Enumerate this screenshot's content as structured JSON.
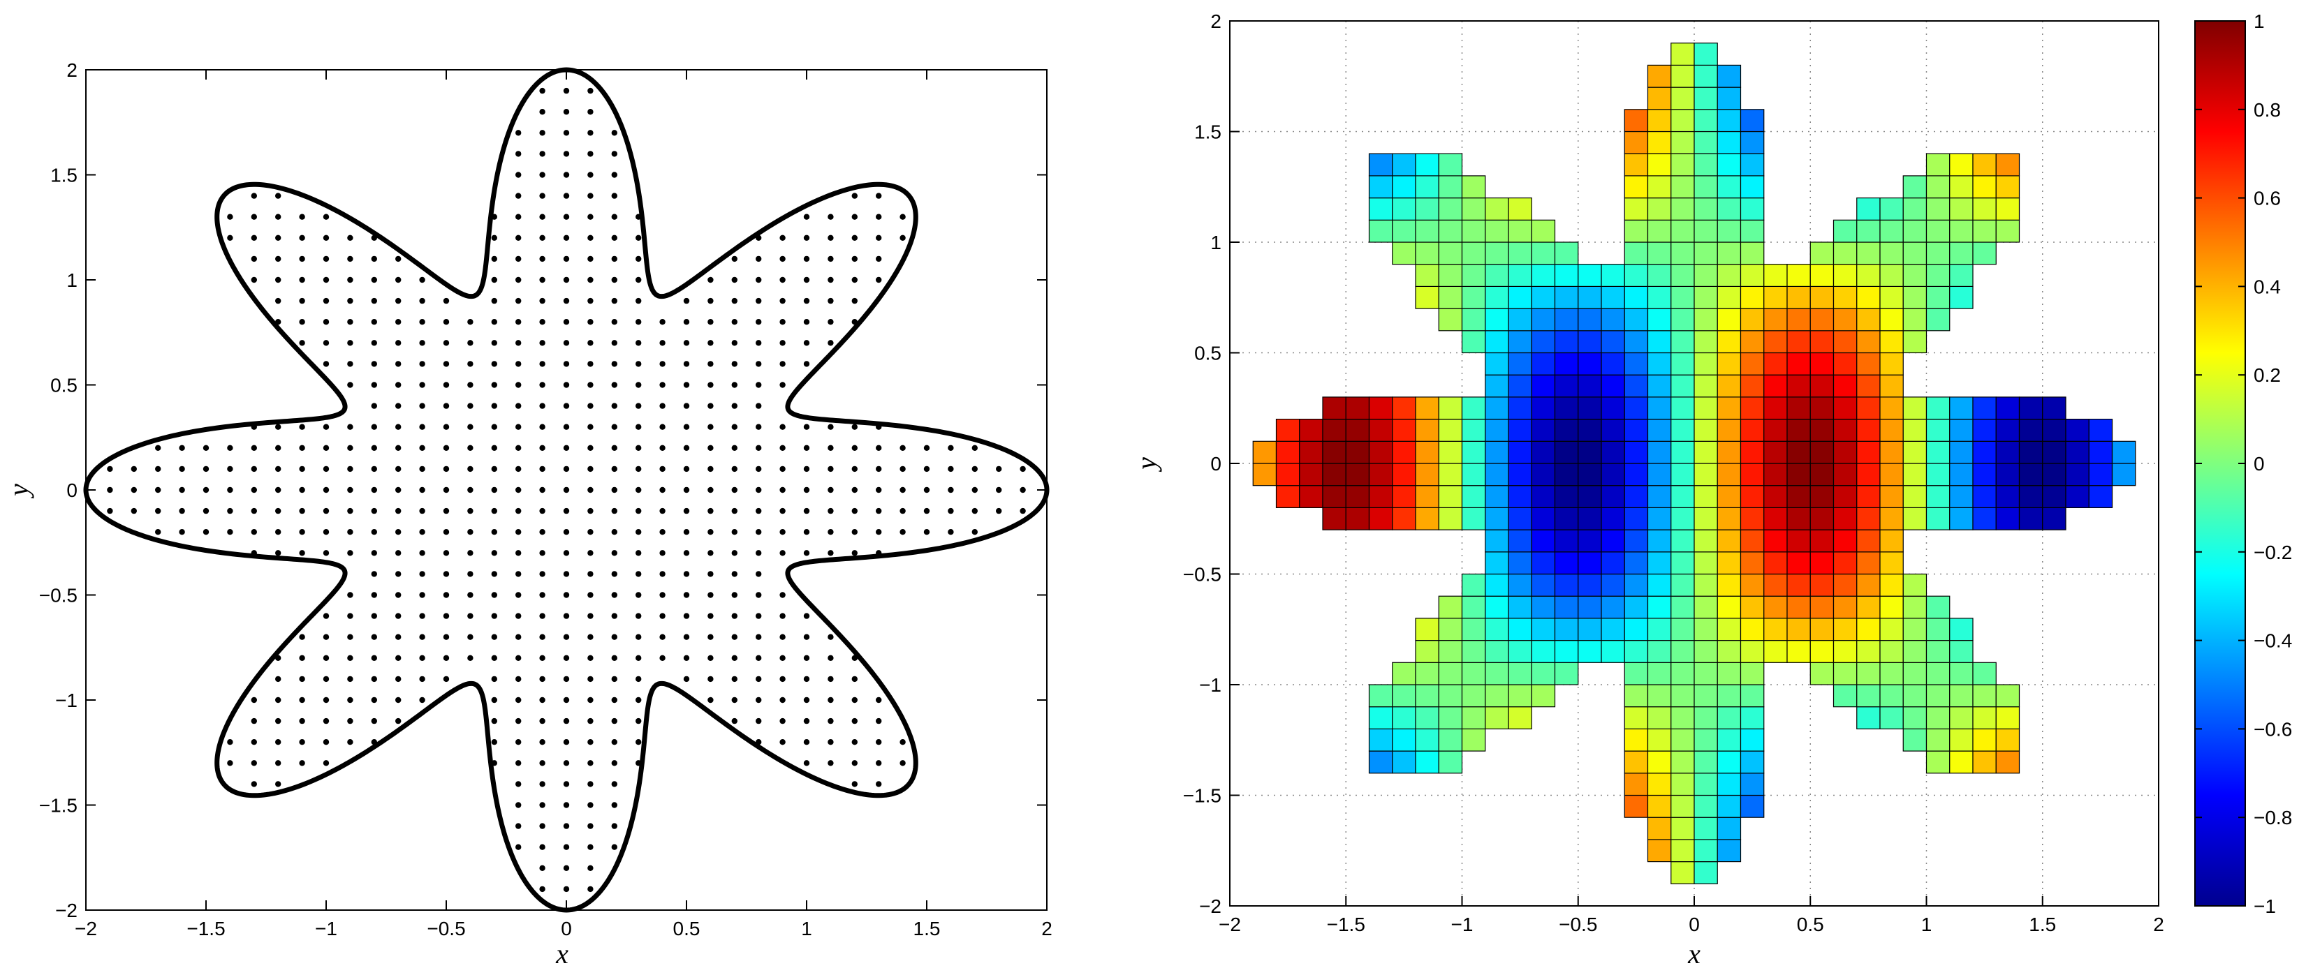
{
  "chart_data": [
    {
      "type": "scatter",
      "xlabel": "x",
      "ylabel": "y",
      "xlim": [
        -2,
        2
      ],
      "ylim": [
        -2,
        2
      ],
      "x_ticks": [
        "−2",
        "−1.5",
        "−1",
        "−0.5",
        "0",
        "0.5",
        "1",
        "1.5",
        "2"
      ],
      "y_ticks": [
        "−2",
        "−1.5",
        "−1",
        "−0.5",
        "0",
        "0.5",
        "1",
        "1.5",
        "2"
      ],
      "grid": false,
      "boundary": {
        "shape": "eight-petal star curve",
        "r_mean": 1.5,
        "r_amplitude": 0.5,
        "petals": 8,
        "petal_tips": 8,
        "tip_radius": 2.0,
        "notch_radius": 1.0
      },
      "points": {
        "spacing": 0.1,
        "description_values": {
          "grid_min": -2,
          "grid_max": 2
        },
        "marker": "black dot"
      }
    },
    {
      "type": "heatmap",
      "xlabel": "x",
      "ylabel": "y",
      "xlim": [
        -2,
        2
      ],
      "ylim": [
        -2,
        2
      ],
      "x_ticks": [
        "−2",
        "−1.5",
        "−1",
        "−0.5",
        "0",
        "0.5",
        "1",
        "1.5",
        "2"
      ],
      "y_ticks": [
        "−2",
        "−1.5",
        "−1",
        "−0.5",
        "0",
        "0.5",
        "1",
        "1.5",
        "2"
      ],
      "grid": true,
      "cell_size": 0.1,
      "value_function": "sin(pi*x)*cos(pi*y/2) on eight-petal star domain",
      "colormap": "jet",
      "colorbar": {
        "min": -1,
        "max": 1,
        "ticks": [
          "1",
          "0.8",
          "0.6",
          "0.4",
          "0.2",
          "0",
          "−0.2",
          "−0.4",
          "−0.6",
          "−0.8",
          "−1"
        ],
        "position": "right"
      }
    }
  ]
}
